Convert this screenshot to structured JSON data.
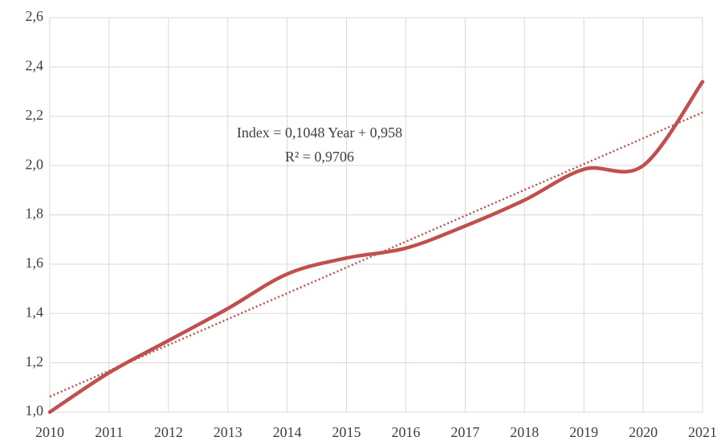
{
  "chart_data": {
    "type": "line",
    "x": [
      2010,
      2011,
      2012,
      2013,
      2014,
      2015,
      2016,
      2017,
      2018,
      2019,
      2020,
      2021
    ],
    "series": [
      {
        "name": "Index",
        "color": "#c0504d",
        "values": [
          1.0,
          1.16,
          1.29,
          1.42,
          1.56,
          1.625,
          1.665,
          1.755,
          1.86,
          1.985,
          2.0,
          2.34
        ]
      }
    ],
    "xlim": [
      2010,
      2021
    ],
    "xticks": [
      2010,
      2011,
      2012,
      2013,
      2014,
      2015,
      2016,
      2017,
      2018,
      2019,
      2020,
      2021
    ],
    "ylim": [
      1.0,
      2.6
    ],
    "yticks": [
      {
        "value": 1.0,
        "label": "1,0"
      },
      {
        "value": 1.2,
        "label": "1,2"
      },
      {
        "value": 1.4,
        "label": "1,4"
      },
      {
        "value": 1.6,
        "label": "1,6"
      },
      {
        "value": 1.8,
        "label": "1,8"
      },
      {
        "value": 2.0,
        "label": "2,0"
      },
      {
        "value": 2.2,
        "label": "2,2"
      },
      {
        "value": 2.4,
        "label": "2,4"
      },
      {
        "value": 2.6,
        "label": "2,6"
      }
    ],
    "grid": true,
    "trendline": {
      "equation": "Index = 0,1048 Year + 0,958",
      "r_squared": "R² = 0,9706",
      "slope": 0.1048,
      "intercept": 0.958
    }
  }
}
